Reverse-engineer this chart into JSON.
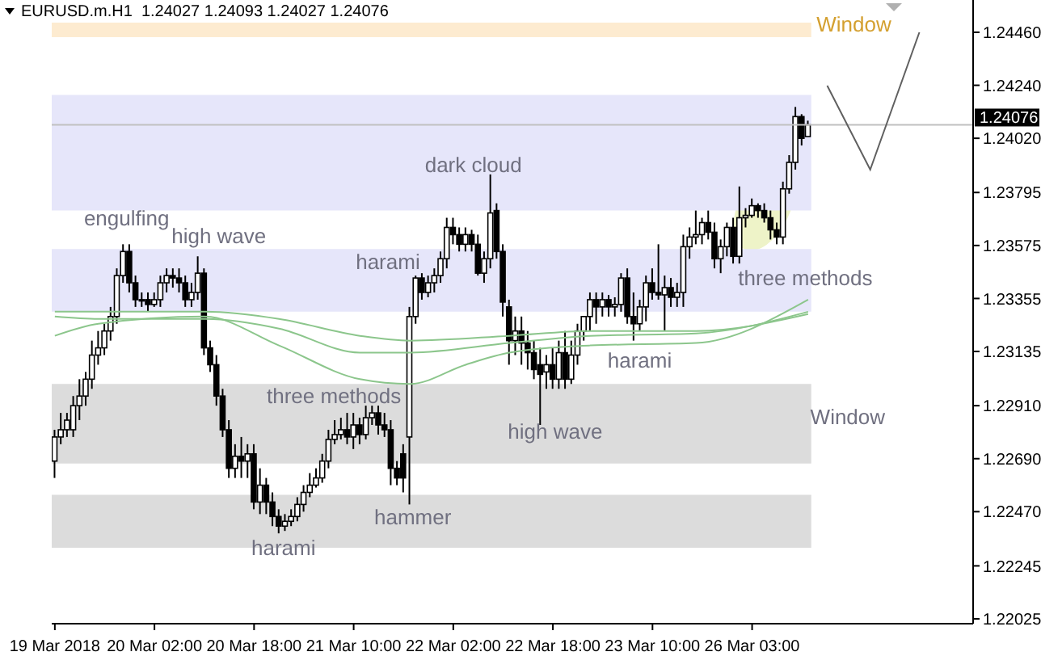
{
  "chart_data": {
    "type": "candlestick",
    "title": "EURUSD.m.H1  1.24027 1.24093 1.24027 1.24076",
    "categories": [
      "19 Mar 2018",
      null,
      null,
      null,
      null,
      null,
      null,
      null,
      null,
      null,
      null,
      null,
      null,
      null,
      null,
      null,
      "20 Mar 02:00",
      null,
      null,
      null,
      null,
      null,
      null,
      null,
      null,
      null,
      null,
      null,
      null,
      null,
      null,
      null,
      "20 Mar 18:00",
      null,
      null,
      null,
      null,
      null,
      null,
      null,
      null,
      null,
      null,
      null,
      null,
      null,
      null,
      null,
      "21 Mar 10:00",
      null,
      null,
      null,
      null,
      null,
      null,
      null,
      null,
      null,
      null,
      null,
      null,
      null,
      null,
      null,
      "22 Mar 02:00",
      null,
      null,
      null,
      null,
      null,
      null,
      null,
      null,
      null,
      null,
      null,
      null,
      null,
      null,
      null,
      "22 Mar 18:00",
      null,
      null,
      null,
      null,
      null,
      null,
      null,
      null,
      null,
      null,
      null,
      null,
      null,
      null,
      null,
      "23 Mar 10:00",
      null,
      null,
      null,
      null,
      null,
      null,
      null,
      null,
      null,
      null,
      null,
      null,
      null,
      null,
      null,
      "26 Mar 03:00",
      null,
      null,
      null,
      null,
      null,
      null,
      null,
      null,
      null,
      null,
      null,
      null,
      null,
      null,
      null,
      null,
      null,
      null,
      null,
      null,
      null,
      null,
      null,
      null,
      null,
      null,
      null,
      null,
      null,
      null,
      null,
      null,
      null,
      null,
      null
    ],
    "ohlc": [
      [
        1.2268,
        1.2281,
        1.2261,
        1.2278
      ],
      [
        1.2278,
        1.2288,
        1.2275,
        1.2281
      ],
      [
        1.2281,
        1.2288,
        1.2278,
        1.2285
      ],
      [
        1.2281,
        1.2295,
        1.2278,
        1.2291
      ],
      [
        1.2291,
        1.2302,
        1.2285,
        1.2295
      ],
      [
        1.2295,
        1.2305,
        1.2291,
        1.2302
      ],
      [
        1.2302,
        1.2318,
        1.2298,
        1.2312
      ],
      [
        1.2312,
        1.2322,
        1.2308,
        1.2315
      ],
      [
        1.2315,
        1.2325,
        1.2312,
        1.2322
      ],
      [
        1.2322,
        1.2332,
        1.2318,
        1.2328
      ],
      [
        1.2328,
        1.2348,
        1.2325,
        1.2345
      ],
      [
        1.2345,
        1.2358,
        1.2342,
        1.2355
      ],
      [
        1.2355,
        1.2358,
        1.2338,
        1.2342
      ],
      [
        1.2342,
        1.2345,
        1.2332,
        1.2335
      ],
      [
        1.2335,
        1.2338,
        1.2332,
        1.2335
      ],
      [
        1.2335,
        1.2338,
        1.233,
        1.2333
      ],
      [
        1.2333,
        1.2338,
        1.2332,
        1.2335
      ],
      [
        1.2335,
        1.2345,
        1.2332,
        1.2342
      ],
      [
        1.2342,
        1.2348,
        1.2338,
        1.2345
      ],
      [
        1.2345,
        1.2348,
        1.234,
        1.2344
      ],
      [
        1.2344,
        1.2348,
        1.2338,
        1.2342
      ],
      [
        1.2342,
        1.2345,
        1.2332,
        1.2335
      ],
      [
        1.2335,
        1.2342,
        1.2332,
        1.2338
      ],
      [
        1.2338,
        1.2353,
        1.2335,
        1.2346
      ],
      [
        1.2346,
        1.2348,
        1.2312,
        1.2315
      ],
      [
        1.2315,
        1.2318,
        1.2305,
        1.2308
      ],
      [
        1.2308,
        1.2312,
        1.2291,
        1.2295
      ],
      [
        1.2295,
        1.2298,
        1.2278,
        1.2281
      ],
      [
        1.2281,
        1.2285,
        1.2261,
        1.2265
      ],
      [
        1.2265,
        1.2275,
        1.2261,
        1.227
      ],
      [
        1.227,
        1.2278,
        1.2261,
        1.2268
      ],
      [
        1.2268,
        1.2275,
        1.2261,
        1.2271
      ],
      [
        1.2271,
        1.2275,
        1.2248,
        1.2251
      ],
      [
        1.2251,
        1.2265,
        1.2246,
        1.2258
      ],
      [
        1.2258,
        1.2261,
        1.2246,
        1.2251
      ],
      [
        1.2251,
        1.2255,
        1.2241,
        1.2245
      ],
      [
        1.2245,
        1.2248,
        1.2238,
        1.2241
      ],
      [
        1.2241,
        1.2246,
        1.2239,
        1.2243
      ],
      [
        1.2243,
        1.2248,
        1.2241,
        1.2245
      ],
      [
        1.2245,
        1.2253,
        1.2243,
        1.225
      ],
      [
        1.225,
        1.2258,
        1.2247,
        1.2255
      ],
      [
        1.2255,
        1.2263,
        1.2253,
        1.2258
      ],
      [
        1.2258,
        1.2265,
        1.2257,
        1.2261
      ],
      [
        1.2261,
        1.2271,
        1.2259,
        1.2268
      ],
      [
        1.2268,
        1.2281,
        1.2265,
        1.2277
      ],
      [
        1.2277,
        1.2285,
        1.2275,
        1.2279
      ],
      [
        1.2279,
        1.2286,
        1.2277,
        1.2281
      ],
      [
        1.2281,
        1.2288,
        1.2275,
        1.2278
      ],
      [
        1.2278,
        1.2288,
        1.2273,
        1.2283
      ],
      [
        1.2283,
        1.2286,
        1.2275,
        1.2279
      ],
      [
        1.2279,
        1.2291,
        1.2277,
        1.2286
      ],
      [
        1.2286,
        1.2291,
        1.2283,
        1.2288
      ],
      [
        1.2288,
        1.2291,
        1.2279,
        1.2283
      ],
      [
        1.2283,
        1.2288,
        1.2278,
        1.2281
      ],
      [
        1.2281,
        1.2285,
        1.2258,
        1.2265
      ],
      [
        1.2265,
        1.2268,
        1.2258,
        1.2261
      ],
      [
        1.2271,
        1.2275,
        1.2255,
        1.2261
      ],
      [
        1.2278,
        1.2332,
        1.225,
        1.2328
      ],
      [
        1.2328,
        1.2345,
        1.2325,
        1.2344
      ],
      [
        1.2344,
        1.2346,
        1.2335,
        1.2338
      ],
      [
        1.2338,
        1.2345,
        1.2336,
        1.2342
      ],
      [
        1.2342,
        1.2348,
        1.2338,
        1.2345
      ],
      [
        1.2345,
        1.2355,
        1.2342,
        1.2352
      ],
      [
        1.2352,
        1.2369,
        1.2348,
        1.2365
      ],
      [
        1.2365,
        1.2369,
        1.2358,
        1.2362
      ],
      [
        1.2362,
        1.2365,
        1.2355,
        1.2358
      ],
      [
        1.2358,
        1.2365,
        1.2355,
        1.2362
      ],
      [
        1.2362,
        1.2364,
        1.2355,
        1.2358
      ],
      [
        1.2358,
        1.2362,
        1.2345,
        1.2346
      ],
      [
        1.2346,
        1.2355,
        1.2342,
        1.2352
      ],
      [
        1.2352,
        1.2387,
        1.2348,
        1.2371
      ],
      [
        1.2372,
        1.2375,
        1.2352,
        1.2355
      ],
      [
        1.2355,
        1.2358,
        1.2328,
        1.2334
      ],
      [
        1.2332,
        1.2335,
        1.2308,
        1.2318
      ],
      [
        1.2318,
        1.2328,
        1.2312,
        1.2322
      ],
      [
        1.2322,
        1.2328,
        1.2308,
        1.2317
      ],
      [
        1.2317,
        1.2322,
        1.2306,
        1.2313
      ],
      [
        1.2313,
        1.2318,
        1.2302,
        1.2306
      ],
      [
        1.2308,
        1.2315,
        1.2283,
        1.2304
      ],
      [
        1.2305,
        1.2312,
        1.2298,
        1.2308
      ],
      [
        1.2308,
        1.2315,
        1.2298,
        1.2302
      ],
      [
        1.2302,
        1.2318,
        1.2298,
        1.2313
      ],
      [
        1.2313,
        1.2322,
        1.2298,
        1.2302
      ],
      [
        1.2302,
        1.2318,
        1.23,
        1.2312
      ],
      [
        1.2312,
        1.2325,
        1.2308,
        1.2322
      ],
      [
        1.2322,
        1.2328,
        1.2318,
        1.2328
      ],
      [
        1.2328,
        1.2338,
        1.2322,
        1.2335
      ],
      [
        1.2335,
        1.2338,
        1.2325,
        1.2332
      ],
      [
        1.2332,
        1.2338,
        1.2328,
        1.2335
      ],
      [
        1.2335,
        1.2337,
        1.2328,
        1.2332
      ],
      [
        1.2332,
        1.2336,
        1.2328,
        1.2333
      ],
      [
        1.2333,
        1.2346,
        1.233,
        1.2344
      ],
      [
        1.2344,
        1.2348,
        1.2325,
        1.2328
      ],
      [
        1.2328,
        1.2338,
        1.2318,
        1.2325
      ],
      [
        1.2325,
        1.2335,
        1.2322,
        1.2332
      ],
      [
        1.2332,
        1.2345,
        1.2326,
        1.2342
      ],
      [
        1.2342,
        1.2348,
        1.2335,
        1.2338
      ],
      [
        1.2338,
        1.2358,
        1.2335,
        1.2337
      ],
      [
        1.2337,
        1.2345,
        1.2322,
        1.234
      ],
      [
        1.234,
        1.2344,
        1.2332,
        1.2336
      ],
      [
        1.2336,
        1.2342,
        1.2332,
        1.2338
      ],
      [
        1.2338,
        1.2362,
        1.2332,
        1.2357
      ],
      [
        1.2357,
        1.2365,
        1.2352,
        1.2361
      ],
      [
        1.2361,
        1.2372,
        1.2358,
        1.2362
      ],
      [
        1.2362,
        1.2369,
        1.2358,
        1.2367
      ],
      [
        1.2367,
        1.2372,
        1.236,
        1.2363
      ],
      [
        1.2363,
        1.2367,
        1.2348,
        1.2352
      ],
      [
        1.2352,
        1.236,
        1.2346,
        1.2357
      ],
      [
        1.2357,
        1.2367,
        1.2353,
        1.2365
      ],
      [
        1.2365,
        1.2369,
        1.235,
        1.2353
      ],
      [
        1.2353,
        1.2382,
        1.235,
        1.2369
      ],
      [
        1.2369,
        1.2373,
        1.2365,
        1.237
      ],
      [
        1.237,
        1.2377,
        1.2369,
        1.2374
      ],
      [
        1.2374,
        1.2375,
        1.2369,
        1.2372
      ],
      [
        1.2372,
        1.2375,
        1.2367,
        1.2369
      ],
      [
        1.2369,
        1.2372,
        1.236,
        1.2364
      ],
      [
        1.2364,
        1.2367,
        1.2358,
        1.2361
      ],
      [
        1.2361,
        1.2384,
        1.2358,
        1.2381
      ],
      [
        1.2381,
        1.2395,
        1.2379,
        1.2392
      ],
      [
        1.2392,
        1.2415,
        1.2389,
        1.2411
      ],
      [
        1.2411,
        1.2412,
        1.2399,
        1.2402
      ],
      [
        1.24027,
        1.24093,
        1.24027,
        1.24076
      ],
      null,
      null,
      null,
      null,
      null,
      null,
      null,
      null,
      null,
      null,
      null,
      null,
      null,
      null,
      null,
      null,
      null,
      null,
      null,
      null,
      null,
      null,
      null,
      null,
      null,
      null
    ],
    "series": [
      {
        "type": "line",
        "color": "#8cc68c",
        "values": [
          1.232,
          null,
          null,
          null,
          null,
          null,
          null,
          1.2325,
          null,
          null,
          null,
          null,
          null,
          null,
          null,
          null,
          null,
          null,
          null,
          null,
          null,
          null,
          null,
          null,
          1.2328,
          null,
          null,
          null,
          null,
          null,
          null,
          null,
          null,
          null,
          null,
          null,
          1.2316,
          null,
          null,
          null,
          null,
          null,
          null,
          null,
          null,
          null,
          null,
          null,
          null,
          1.2302,
          null,
          null,
          null,
          null,
          null,
          null,
          null,
          1.23,
          null,
          null,
          null,
          null,
          null,
          null,
          null,
          null,
          1.2308,
          null,
          null,
          null,
          null,
          null,
          null,
          1.2313,
          null,
          null,
          null,
          null,
          null,
          null,
          null,
          null,
          null,
          null,
          null,
          null,
          1.2316,
          null,
          null,
          null,
          null,
          null,
          null,
          null,
          null,
          null,
          null,
          null,
          null,
          null,
          null,
          null,
          null,
          1.2317,
          null,
          null,
          null,
          null,
          null,
          null,
          null,
          null,
          null,
          null,
          null,
          null,
          null,
          null,
          null,
          null,
          null,
          1.2335,
          null,
          null,
          null,
          null,
          null,
          null,
          null,
          null,
          null,
          null,
          null,
          null,
          null,
          null,
          null,
          null,
          null,
          null,
          null,
          null,
          null,
          null,
          null,
          null,
          null,
          null
        ]
      },
      {
        "type": "line",
        "color": "#8cc68c",
        "values": [
          1.2328,
          null,
          null,
          null,
          null,
          null,
          null,
          1.2327,
          null,
          null,
          null,
          null,
          null,
          null,
          null,
          null,
          null,
          null,
          null,
          null,
          null,
          null,
          null,
          null,
          1.2327,
          null,
          null,
          null,
          null,
          null,
          null,
          null,
          null,
          null,
          null,
          null,
          1.2323,
          null,
          null,
          null,
          null,
          null,
          null,
          null,
          null,
          null,
          null,
          null,
          null,
          1.2313,
          null,
          null,
          null,
          null,
          null,
          null,
          null,
          1.2313,
          null,
          null,
          null,
          null,
          null,
          null,
          null,
          null,
          null,
          null,
          null,
          null,
          null,
          null,
          null,
          1.2317,
          null,
          null,
          null,
          null,
          null,
          null,
          null,
          null,
          null,
          null,
          null,
          null,
          1.232,
          null,
          null,
          null,
          null,
          null,
          null,
          null,
          null,
          null,
          null,
          null,
          null,
          null,
          null,
          null,
          null,
          1.2321,
          null,
          null,
          null,
          null,
          null,
          null,
          null,
          null,
          null,
          null,
          null,
          null,
          null,
          null,
          null,
          null,
          null,
          1.233,
          null,
          null,
          null,
          null,
          null,
          null,
          null,
          null,
          null,
          null,
          null,
          null,
          null,
          null,
          null,
          null,
          null,
          null,
          null,
          null,
          null,
          null,
          null,
          null,
          null,
          null
        ]
      },
      {
        "type": "line",
        "color": "#8cc68c",
        "values": [
          1.233,
          null,
          null,
          null,
          null,
          null,
          null,
          1.233,
          null,
          null,
          null,
          null,
          null,
          null,
          null,
          null,
          null,
          null,
          null,
          null,
          null,
          null,
          null,
          null,
          1.233,
          null,
          null,
          null,
          null,
          null,
          null,
          null,
          null,
          null,
          null,
          null,
          1.2327,
          null,
          null,
          null,
          null,
          null,
          null,
          null,
          null,
          null,
          null,
          null,
          null,
          1.232,
          null,
          null,
          null,
          null,
          null,
          null,
          null,
          1.2318,
          null,
          null,
          null,
          null,
          null,
          null,
          null,
          null,
          null,
          null,
          null,
          null,
          null,
          null,
          null,
          1.232,
          null,
          null,
          null,
          null,
          null,
          null,
          null,
          null,
          null,
          null,
          null,
          null,
          1.2322,
          null,
          null,
          null,
          null,
          null,
          null,
          null,
          null,
          null,
          null,
          null,
          null,
          null,
          null,
          null,
          null,
          1.2322,
          null,
          null,
          null,
          null,
          null,
          null,
          null,
          null,
          null,
          null,
          null,
          null,
          null,
          null,
          null,
          null,
          null,
          1.2329,
          null,
          null,
          null,
          null,
          null,
          null,
          null,
          null,
          null,
          null,
          null,
          null,
          null,
          null,
          null,
          null,
          null,
          null,
          null,
          null,
          null,
          null,
          null,
          null,
          null,
          null
        ]
      }
    ],
    "ylim": [
      1.22005,
      1.24594
    ],
    "yticks": [
      {
        "value": 1.2446,
        "label": "1.24460"
      },
      {
        "value": 1.2424,
        "label": "1.24240"
      },
      {
        "value": 1.2402,
        "label": "1.24020"
      },
      {
        "value": 1.23795,
        "label": "1.23795"
      },
      {
        "value": 1.23575,
        "label": "1.23575"
      },
      {
        "value": 1.23355,
        "label": "1.23355"
      },
      {
        "value": 1.23135,
        "label": "1.23135"
      },
      {
        "value": 1.2291,
        "label": "1.22910"
      },
      {
        "value": 1.2269,
        "label": "1.22690"
      },
      {
        "value": 1.2247,
        "label": "1.22470"
      },
      {
        "value": 1.22245,
        "label": "1.22245"
      },
      {
        "value": 1.22025,
        "label": "1.22025"
      }
    ],
    "bands": [
      {
        "axis": "y",
        "from": 1.2372,
        "to": 1.242,
        "color": "#e6e6fa"
      },
      {
        "axis": "y",
        "from": 1.233,
        "to": 1.2356,
        "color": "#e6e6fa"
      },
      {
        "axis": "y",
        "from": 1.2267,
        "to": 1.23,
        "color": "#dcdcdc"
      },
      {
        "axis": "y",
        "from": 1.2232,
        "to": 1.2254,
        "color": "#dcdcdc"
      },
      {
        "axis": "y",
        "from": 1.2444,
        "to": 1.245,
        "color": "#fdebd0"
      }
    ],
    "ref_lines": [
      {
        "axis": "y",
        "value": 1.24076,
        "label": "1.24076",
        "color": "#c0c0c0"
      }
    ],
    "annotations": [
      "Window",
      "engulfing",
      "high wave",
      "harami",
      "dark cloud",
      "three methods",
      "hammer",
      "harami",
      "high wave",
      "harami",
      "three methods",
      "Window"
    ],
    "grid": false,
    "legend": false
  }
}
